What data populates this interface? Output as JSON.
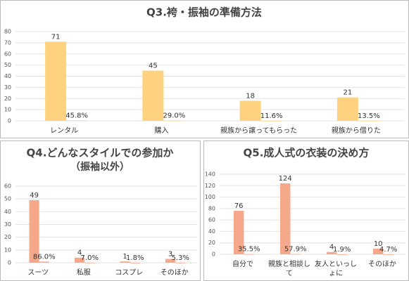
{
  "chart_data": [
    {
      "type": "bar",
      "title": "Q3.袴・振袖の準備方法",
      "categories": [
        "レンタル",
        "購入",
        "親族から譲ってもらった",
        "親族から借りた"
      ],
      "series": [
        {
          "color": "#ffd27f",
          "values": [
            71,
            45,
            18,
            21
          ]
        },
        {
          "color": "#ffd27f",
          "values": [
            0.458,
            0.29,
            0.116,
            0.135
          ],
          "value_labels": [
            "45.8%",
            "29.0%",
            "11.6%",
            "13.5%"
          ]
        }
      ],
      "ylim": [
        0,
        80
      ],
      "yticks": [
        0,
        10,
        20,
        30,
        40,
        50,
        60,
        70,
        80
      ],
      "grid": true
    },
    {
      "type": "bar",
      "title": "Q4.どんなスタイルでの参加か",
      "subtitle": "（振袖以外）",
      "categories": [
        "スーツ",
        "私服",
        "コスプレ",
        "そのほか"
      ],
      "series": [
        {
          "color": "#f5a98a",
          "values": [
            49,
            4,
            1,
            3
          ]
        },
        {
          "color": "#f5a98a",
          "values": [
            0.86,
            0.07,
            0.018,
            0.053
          ],
          "value_labels": [
            "86.0%",
            "7.0%",
            "1.8%",
            "5.3%"
          ]
        }
      ],
      "ylim": [
        0,
        60
      ],
      "yticks": [
        0,
        10,
        20,
        30,
        40,
        50,
        60
      ],
      "grid": true
    },
    {
      "type": "bar",
      "title": "Q5.成人式の衣装の決め方",
      "categories": [
        "自分で",
        "親族と相談して",
        "友人といっしょに",
        "そのほか"
      ],
      "series": [
        {
          "color": "#f5a98a",
          "values": [
            76,
            124,
            4,
            10
          ]
        },
        {
          "color": "#f5a98a",
          "values": [
            0.355,
            0.579,
            0.019,
            0.047
          ],
          "value_labels": [
            "35.5%",
            "57.9%",
            "1.9%",
            "4.7%"
          ]
        }
      ],
      "ylim": [
        0,
        140
      ],
      "yticks": [
        0,
        20,
        40,
        60,
        80,
        100,
        120,
        140
      ],
      "grid": true
    }
  ]
}
